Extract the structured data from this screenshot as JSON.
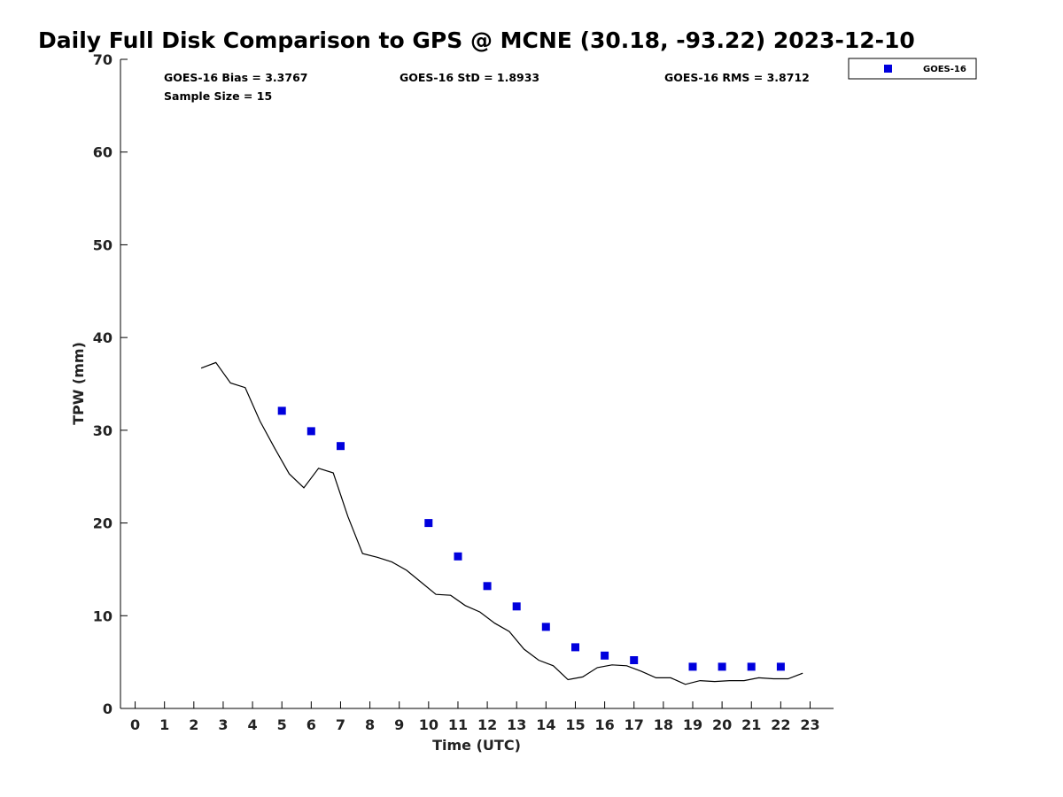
{
  "chart_data": {
    "type": "scatter",
    "title": "Daily Full Disk Comparison to GPS @ MCNE (30.18, -93.22) 2023-12-10",
    "xlabel": "Time (UTC)",
    "ylabel": "TPW (mm)",
    "xlim": [
      -0.5,
      23.8
    ],
    "ylim": [
      0,
      70
    ],
    "xticks": [
      0,
      1,
      2,
      3,
      4,
      5,
      6,
      7,
      8,
      9,
      10,
      11,
      12,
      13,
      14,
      15,
      16,
      17,
      18,
      19,
      20,
      21,
      22,
      23
    ],
    "yticks": [
      0,
      10,
      20,
      30,
      40,
      50,
      60,
      70
    ],
    "grid": false,
    "legend_position": "top-right, outside plot",
    "stats": {
      "bias": "GOES-16 Bias = 3.3767",
      "std": "GOES-16 StD = 1.8933",
      "rms": "GOES-16 RMS = 3.8712",
      "sample": "Sample Size = 15"
    },
    "series": [
      {
        "name": "GOES-16",
        "kind": "scatter",
        "marker": "square",
        "color": "#0000dd",
        "x": [
          5,
          6,
          7,
          10,
          11,
          12,
          13,
          14,
          15,
          16,
          17,
          19,
          20,
          21,
          22
        ],
        "y": [
          32.1,
          29.9,
          28.3,
          20.0,
          16.4,
          13.2,
          11.0,
          8.8,
          6.6,
          5.7,
          5.2,
          4.5,
          4.5,
          4.5,
          4.5
        ]
      },
      {
        "kind": "line",
        "color": "#000000",
        "x": [
          2.25,
          2.75,
          3.25,
          3.75,
          4.25,
          4.75,
          5.25,
          5.75,
          6.25,
          6.75,
          7.25,
          7.75,
          8.25,
          8.75,
          9.25,
          9.75,
          10.25,
          10.75,
          11.25,
          11.75,
          12.25,
          12.75,
          13.25,
          13.75,
          14.25,
          14.75,
          15.25,
          15.75,
          16.25,
          16.75,
          17.25,
          17.75,
          18.25,
          18.75,
          19.25,
          19.75,
          20.25,
          20.75,
          21.25,
          21.75,
          22.25,
          22.75
        ],
        "y": [
          36.7,
          37.3,
          35.1,
          34.6,
          31.0,
          28.1,
          25.3,
          23.8,
          25.9,
          25.4,
          20.7,
          16.7,
          16.3,
          15.8,
          14.9,
          13.6,
          12.3,
          12.2,
          11.1,
          10.4,
          9.2,
          8.3,
          6.4,
          5.2,
          4.6,
          3.1,
          3.4,
          4.4,
          4.7,
          4.6,
          4.0,
          3.3,
          3.3,
          2.6,
          3.0,
          2.9,
          3.0,
          3.0,
          3.3,
          3.2,
          3.2,
          3.8
        ]
      }
    ]
  }
}
